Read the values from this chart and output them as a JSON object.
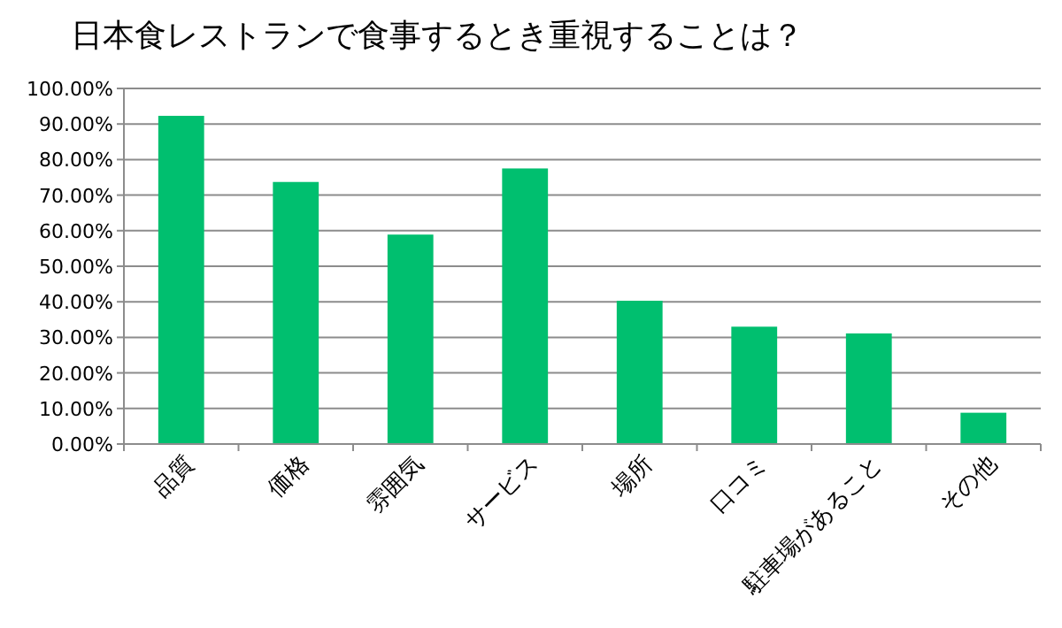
{
  "chart_data": {
    "type": "bar",
    "title": "日本食レストランで食事するとき重視することは？",
    "categories": [
      "品質",
      "価格",
      "雰囲気",
      "サービス",
      "場所",
      "口コミ",
      "駐車場があること",
      "その他"
    ],
    "values": [
      92.3,
      73.7,
      58.9,
      77.5,
      40.3,
      33.0,
      31.1,
      8.8
    ],
    "color": "#00bf6f",
    "ylim": [
      0,
      100
    ],
    "yticks": [
      {
        "value": 0,
        "label": "0.00%"
      },
      {
        "value": 10,
        "label": "10.00%"
      },
      {
        "value": 20,
        "label": "20.00%"
      },
      {
        "value": 30,
        "label": "30.00%"
      },
      {
        "value": 40,
        "label": "40.00%"
      },
      {
        "value": 50,
        "label": "50.00%"
      },
      {
        "value": 60,
        "label": "60.00%"
      },
      {
        "value": 70,
        "label": "70.00%"
      },
      {
        "value": 80,
        "label": "80.00%"
      },
      {
        "value": 90,
        "label": "90.00%"
      },
      {
        "value": 100,
        "label": "100.00%"
      }
    ],
    "grid": "y"
  }
}
